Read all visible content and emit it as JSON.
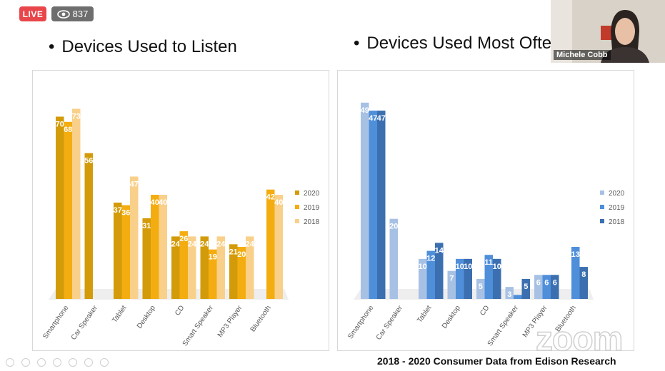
{
  "stream": {
    "live_label": "LIVE",
    "viewer_count": "837"
  },
  "slide": {
    "left_title": "Devices Used to Listen",
    "right_title": "Devices Used Most Often",
    "bullet": "•",
    "footer": "2018 - 2020  Consumer Data from Edison Research"
  },
  "video": {
    "participant_name": "Michele Cobb"
  },
  "watermark": "zoom",
  "chart_data": [
    {
      "type": "bar",
      "categories": [
        "Smartphone",
        "Car Speaker",
        "Tablet",
        "Desktop",
        "CD",
        "Smart Speaker",
        "MP3 Player",
        "Bluetooth"
      ],
      "series": [
        {
          "name": "2020",
          "values": [
            70,
            56,
            37,
            31,
            24,
            24,
            21,
            null
          ],
          "color": "#d39b0a"
        },
        {
          "name": "2019",
          "values": [
            68,
            null,
            36,
            40,
            26,
            19,
            20,
            42
          ],
          "color": "#f4ad10"
        },
        {
          "name": "2018",
          "values": [
            73,
            null,
            47,
            40,
            24,
            24,
            24,
            40
          ],
          "color": "#f9d08a"
        }
      ],
      "ylim": [
        0,
        80
      ],
      "legend": "right",
      "grid": false
    },
    {
      "type": "bar",
      "categories": [
        "Smartphone",
        "Car Speaker",
        "Tablet",
        "Desktop",
        "CD",
        "Smart Speaker",
        "MP3 Player",
        "Bluetooth"
      ],
      "series": [
        {
          "name": "2020",
          "values": [
            49,
            20,
            10,
            7,
            5,
            3,
            6,
            null
          ],
          "color": "#a7c1e5"
        },
        {
          "name": "2019",
          "values": [
            47,
            null,
            12,
            10,
            11,
            1,
            6,
            13
          ],
          "color": "#4f8fda"
        },
        {
          "name": "2018",
          "values": [
            47,
            null,
            14,
            10,
            10,
            5,
            6,
            8
          ],
          "color": "#3b6fb0"
        }
      ],
      "ylim": [
        0,
        52
      ],
      "legend": "right",
      "grid": false
    }
  ]
}
